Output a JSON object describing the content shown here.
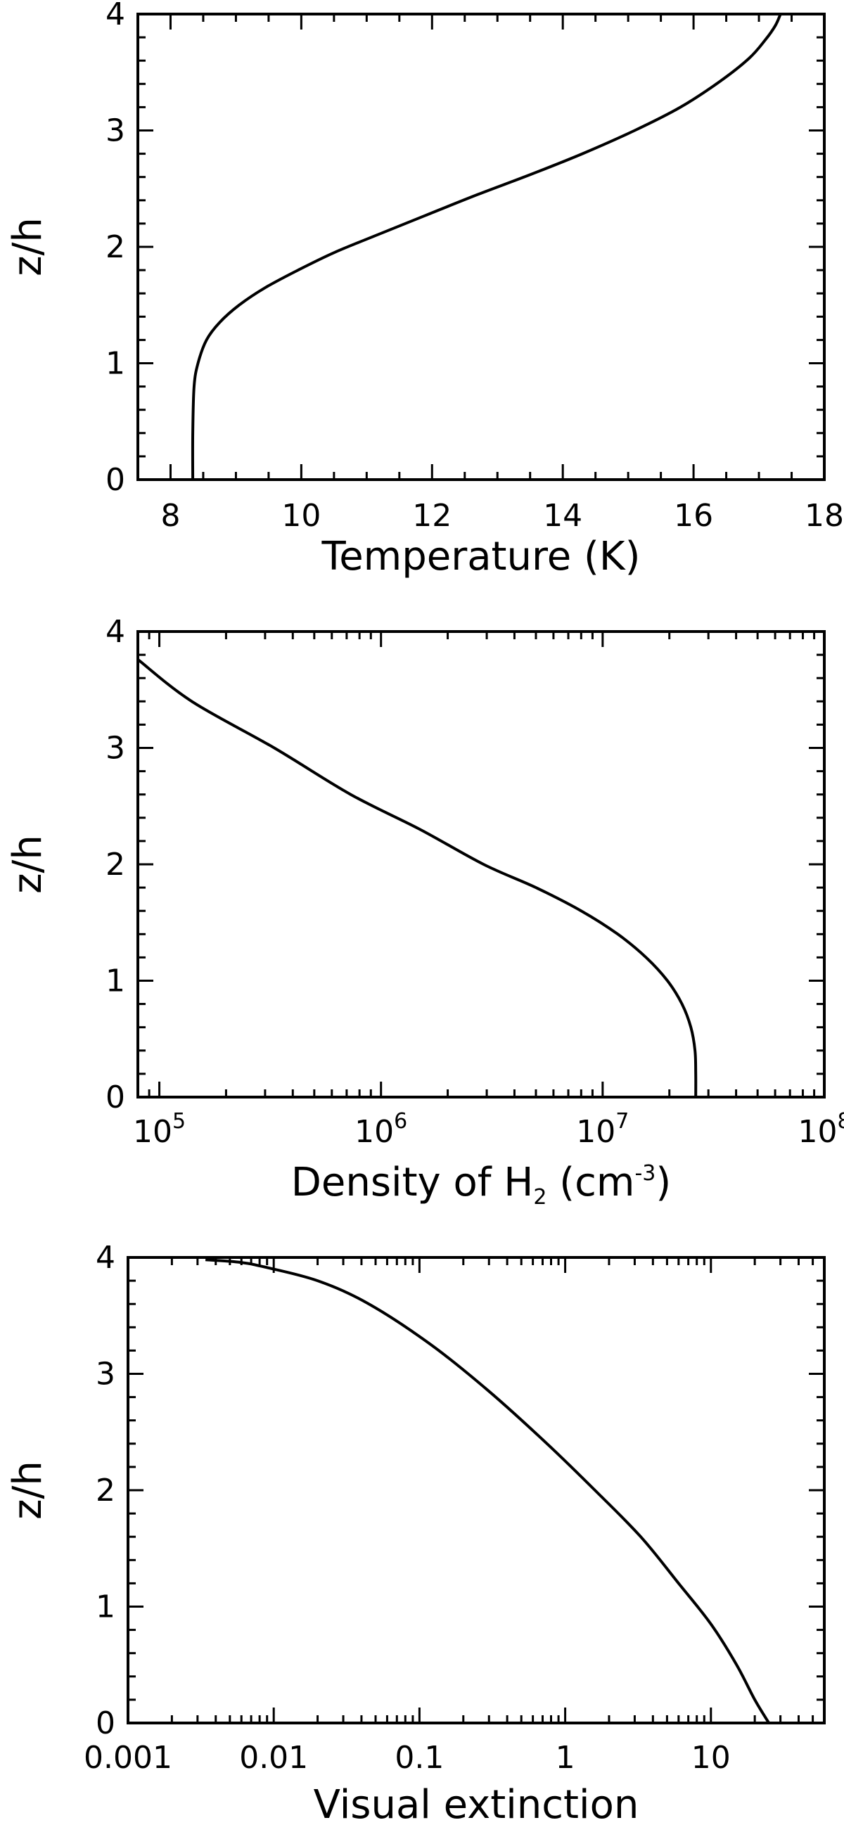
{
  "chart_data": [
    {
      "type": "line",
      "xlabel": "Temperature (K)",
      "ylabel": "z/h",
      "xscale": "linear",
      "xlim": [
        7.5,
        18
      ],
      "ylim": [
        0,
        4
      ],
      "xticks": [
        8,
        10,
        12,
        14,
        16,
        18
      ],
      "xtick_labels": [
        "8",
        "10",
        "12",
        "14",
        "16",
        "18"
      ],
      "yticks": [
        0,
        1,
        2,
        3,
        4
      ],
      "ytick_labels": [
        "0",
        "1",
        "2",
        "3",
        "4"
      ],
      "grid": false,
      "series": [
        {
          "x": [
            8.34,
            8.34,
            8.36,
            8.42,
            8.55,
            8.75,
            9.05,
            9.45,
            9.95,
            10.5,
            11.15,
            11.9,
            12.7,
            13.5,
            14.3,
            15.1,
            15.8,
            16.4,
            16.85,
            17.1,
            17.25,
            17.33
          ],
          "y": [
            0,
            0.4,
            0.8,
            1.0,
            1.2,
            1.35,
            1.5,
            1.65,
            1.8,
            1.95,
            2.1,
            2.27,
            2.45,
            2.62,
            2.8,
            3.0,
            3.2,
            3.42,
            3.62,
            3.78,
            3.9,
            4.0
          ]
        }
      ]
    },
    {
      "type": "line",
      "xlabel": "Density of H",
      "xlabel_sub": "2",
      "xlabel_after": " (cm",
      "xlabel_sup": "-3",
      "xlabel_end": ")",
      "ylabel": "z/h",
      "xscale": "log",
      "xlim": [
        80000,
        100000000
      ],
      "ylim": [
        0,
        4
      ],
      "xticks": [
        100000,
        1000000,
        10000000,
        100000000
      ],
      "xtick_bases": [
        "10",
        "10",
        "10",
        "10"
      ],
      "xtick_exps": [
        "5",
        "6",
        "7",
        "8"
      ],
      "yticks": [
        0,
        1,
        2,
        3,
        4
      ],
      "ytick_labels": [
        "0",
        "1",
        "2",
        "3",
        "4"
      ],
      "grid": false,
      "series": [
        {
          "x": [
            26300000,
            26300000,
            26100000,
            25000000,
            22800000,
            19600000,
            15700000,
            11700000,
            8000000,
            5000000,
            2900000,
            1500000,
            730000,
            330000,
            140000,
            80000
          ],
          "y": [
            0,
            0.2,
            0.4,
            0.6,
            0.8,
            1.0,
            1.2,
            1.4,
            1.6,
            1.8,
            2.0,
            2.3,
            2.6,
            3.0,
            3.4,
            3.76
          ]
        }
      ]
    },
    {
      "type": "line",
      "xlabel": "Visual extinction",
      "ylabel": "z/h",
      "xscale": "log",
      "xlim": [
        0.001,
        60
      ],
      "ylim": [
        0,
        4
      ],
      "xticks": [
        0.001,
        0.01,
        0.1,
        1,
        10
      ],
      "xtick_labels": [
        "0.001",
        "0.01",
        "0.1",
        "1",
        "10"
      ],
      "yticks": [
        0,
        1,
        2,
        3,
        4
      ],
      "ytick_labels": [
        "0",
        "1",
        "2",
        "3",
        "4"
      ],
      "grid": false,
      "series": [
        {
          "x": [
            25,
            20,
            15,
            10,
            6,
            3.3,
            1.6,
            0.75,
            0.3,
            0.12,
            0.045,
            0.02,
            0.0085,
            0.0057,
            0.0034
          ],
          "y": [
            0,
            0.2,
            0.5,
            0.85,
            1.2,
            1.6,
            2.0,
            2.4,
            2.85,
            3.25,
            3.6,
            3.8,
            3.92,
            3.96,
            3.98
          ]
        }
      ]
    }
  ]
}
